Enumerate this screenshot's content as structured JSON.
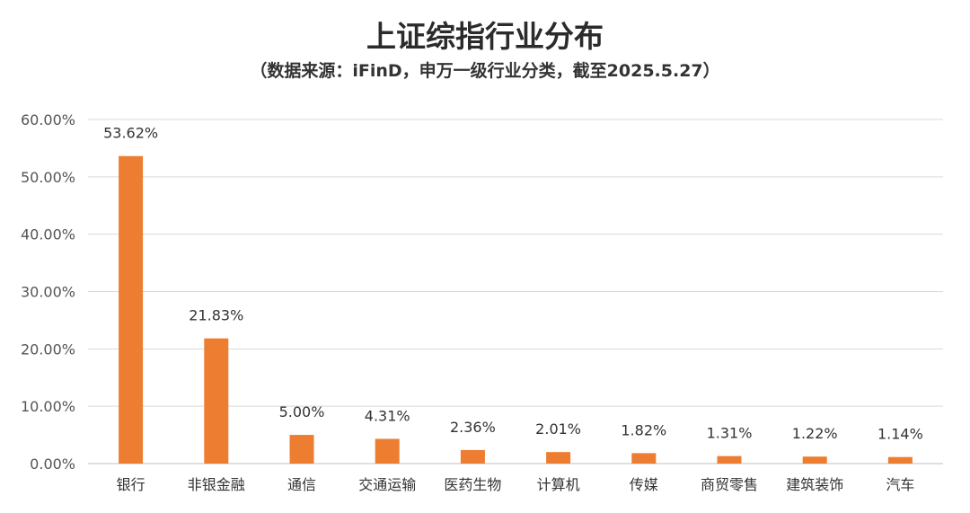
{
  "title": "上证综指行业分布",
  "subtitle": "（数据来源：iFinD，申万一级行业分类，截至2025.5.27）",
  "chart_data": {
    "type": "bar",
    "title": "上证综指行业分布",
    "subtitle": "（数据来源：iFinD，申万一级行业分类，截至2025.5.27）",
    "categories": [
      "银行",
      "非银金融",
      "通信",
      "交通运输",
      "医药生物",
      "计算机",
      "传媒",
      "商贸零售",
      "建筑装饰",
      "汽车"
    ],
    "values": [
      53.62,
      21.83,
      5.0,
      4.31,
      2.36,
      2.01,
      1.82,
      1.31,
      1.22,
      1.14
    ],
    "data_labels": [
      "53.62%",
      "21.83%",
      "5.00%",
      "4.31%",
      "2.36%",
      "2.01%",
      "1.82%",
      "1.31%",
      "1.22%",
      "1.14%"
    ],
    "y_ticks": [
      0,
      10,
      20,
      30,
      40,
      50,
      60
    ],
    "y_tick_labels": [
      "0.00%",
      "10.00%",
      "20.00%",
      "30.00%",
      "40.00%",
      "50.00%",
      "60.00%"
    ],
    "ylim": [
      0,
      60
    ],
    "xlabel": "",
    "ylabel": "",
    "grid": true,
    "legend": "none",
    "bar_color": "#ED7D31",
    "grid_color": "#D9D9D9"
  }
}
